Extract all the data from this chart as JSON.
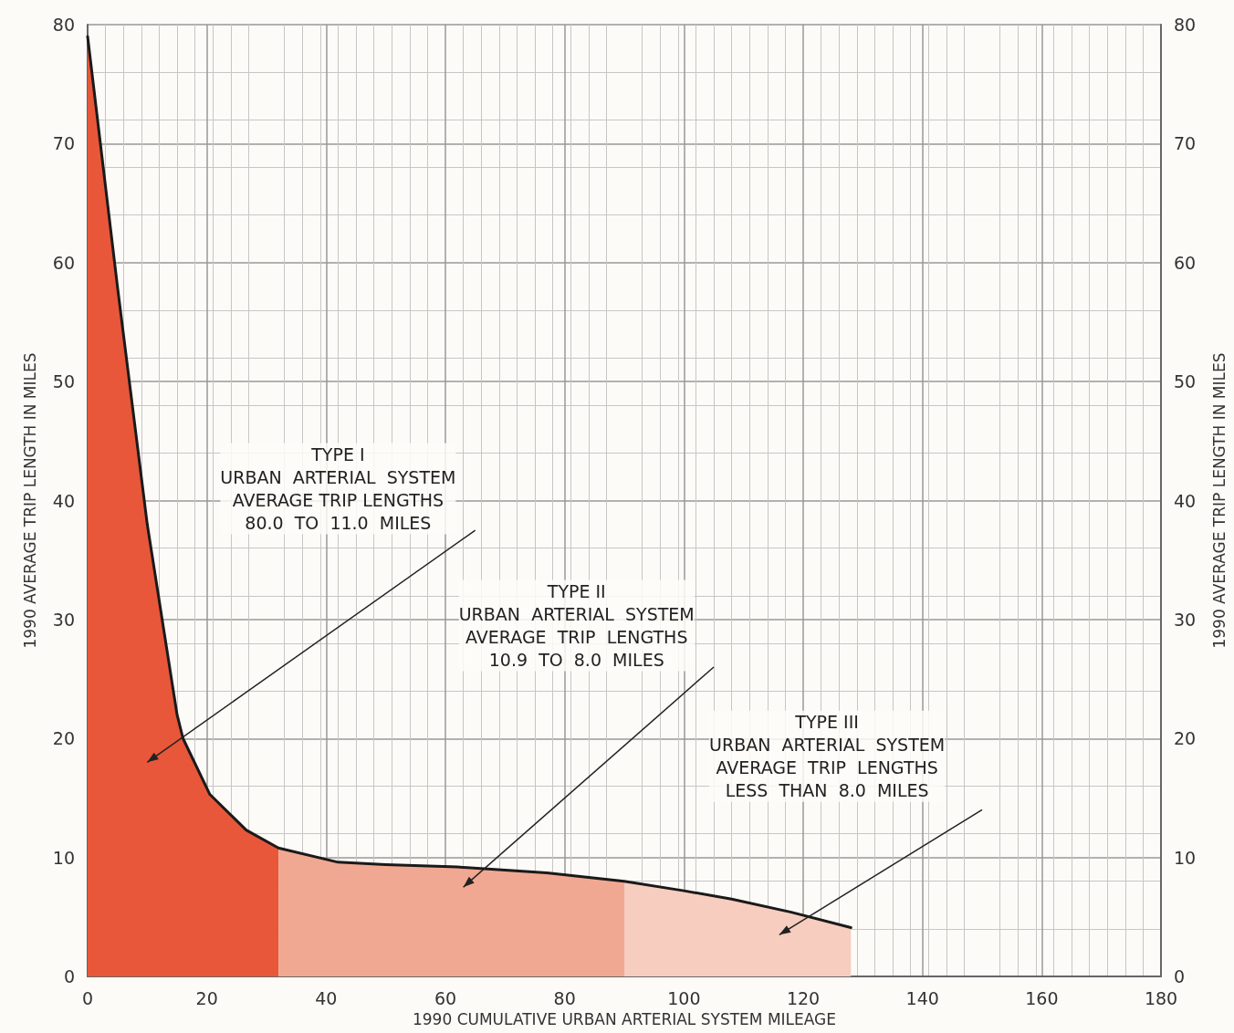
{
  "chart_data": {
    "type": "line",
    "xlabel": "1990 CUMULATIVE URBAN ARTERIAL SYSTEM MILEAGE",
    "ylabel": "1990 AVERAGE TRIP LENGTH IN MILES",
    "y2label": "1990 AVERAGE TRIP LENGTH IN MILES",
    "xlim": [
      0,
      180
    ],
    "xticks": [
      0,
      20,
      40,
      60,
      80,
      100,
      120,
      140,
      160,
      180
    ],
    "ylim": [
      0,
      80
    ],
    "yticks": [
      0,
      10,
      20,
      30,
      40,
      50,
      60,
      70,
      80
    ],
    "y2lim": [
      0,
      80
    ],
    "y2ticks": [
      0,
      10,
      20,
      30,
      40,
      50,
      60,
      70,
      80
    ],
    "grid": true,
    "marker": "none",
    "series": [
      {
        "type": "area",
        "color": "#e8573a",
        "x": [
          0,
          5,
          10,
          15,
          16,
          20.5,
          26.6,
          32
        ],
        "values": [
          79,
          58,
          38,
          22,
          20,
          15.3,
          12.3,
          10.8
        ]
      },
      {
        "type": "area",
        "color": "#f1a892",
        "x": [
          32,
          42,
          50,
          62,
          77,
          90
        ],
        "values": [
          10.8,
          9.6,
          9.4,
          9.2,
          8.7,
          8
        ]
      },
      {
        "type": "area",
        "color": "#f7cdbf",
        "x": [
          90,
          100,
          108,
          118,
          128
        ],
        "values": [
          8,
          7.2,
          6.5,
          5.4,
          4.1
        ]
      },
      {
        "color": "#1a1a1a",
        "line_style": "solid",
        "x": [
          0,
          5,
          10,
          15,
          16,
          20.5,
          26.6,
          32,
          42,
          50,
          62,
          77,
          90,
          100,
          108,
          118,
          128
        ],
        "values": [
          79,
          58,
          38,
          22,
          20,
          15.3,
          12.3,
          10.8,
          9.6,
          9.4,
          9.2,
          8.7,
          8,
          7.2,
          6.5,
          5.4,
          4.1
        ]
      }
    ],
    "annotations": [
      "TYPE I\nURBAN  ARTERIAL  SYSTEM\nAVERAGE TRIP LENGTHS\n80.0  TO  11.0  MILES",
      "TYPE II\nURBAN  ARTERIAL  SYSTEM\nAVERAGE  TRIP  LENGTHS\n10.9  TO  8.0  MILES",
      "TYPE III\nURBAN  ARTERIAL  SYSTEM\nAVERAGE  TRIP  LENGTHS\nLESS  THAN  8.0  MILES"
    ]
  }
}
